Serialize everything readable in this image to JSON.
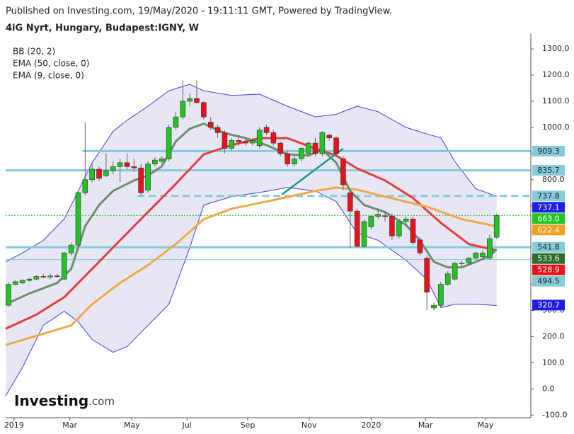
{
  "chart_data": {
    "type": "candlestick",
    "header": "Published on Investing.com, 19/May/2020 - 19:11:11 GMT, Powered by TradingView.",
    "title": "4iG Nyrt, Hungary, Budapest:IGNY, W",
    "legend": [
      "BB (20, 2)",
      "EMA (50, close, 0)",
      "EMA (9, close, 0)"
    ],
    "logo": [
      "Investing",
      ".com"
    ],
    "xlim": [
      -0.4,
      74.9
    ],
    "xticks": [
      {
        "value": 0.8,
        "label": "2019"
      },
      {
        "value": 8.8,
        "label": "Mar"
      },
      {
        "value": 17.7,
        "label": "May"
      },
      {
        "value": 25.6,
        "label": "Jul"
      },
      {
        "value": 34.3,
        "label": "Sep"
      },
      {
        "value": 43.1,
        "label": "Nov"
      },
      {
        "value": 52,
        "label": "2020"
      },
      {
        "value": 59.8,
        "label": "Mar"
      },
      {
        "value": 68.4,
        "label": "May"
      }
    ],
    "ylim": [
      -110,
      1330
    ],
    "yticks": [
      {
        "value": -100,
        "label": "-100.0"
      },
      {
        "value": 0,
        "label": "0.0"
      },
      {
        "value": 100,
        "label": "100.0"
      },
      {
        "value": 200,
        "label": "200.0"
      },
      {
        "value": 300,
        "label": "300.0"
      },
      {
        "value": 400,
        "label": "400.0"
      },
      {
        "value": 500,
        "label": "500.0"
      },
      {
        "value": 600,
        "label": "600.0"
      },
      {
        "value": 700,
        "label": "700.0"
      },
      {
        "value": 800,
        "label": "800.0"
      },
      {
        "value": 900,
        "label": "900.0"
      },
      {
        "value": 1000,
        "label": "1000.0"
      },
      {
        "value": 1100,
        "label": "1100.0"
      },
      {
        "value": 1200,
        "label": "1200.0"
      },
      {
        "value": 1300,
        "label": "1300.0"
      }
    ],
    "up_color": "#22c322",
    "down_color": "#e8121b",
    "ohlc": [
      [
        320,
        410,
        315,
        400
      ],
      [
        400,
        415,
        395,
        410
      ],
      [
        405,
        420,
        400,
        415
      ],
      [
        415,
        425,
        410,
        420
      ],
      [
        420,
        435,
        415,
        430
      ],
      [
        430,
        440,
        425,
        428
      ],
      [
        428,
        440,
        420,
        432
      ],
      [
        432,
        440,
        425,
        430
      ],
      [
        420,
        525,
        415,
        520
      ],
      [
        520,
        560,
        510,
        550
      ],
      [
        550,
        760,
        540,
        750
      ],
      [
        750,
        1020,
        740,
        800
      ],
      [
        800,
        860,
        790,
        840
      ],
      [
        840,
        850,
        795,
        805
      ],
      [
        815,
        900,
        810,
        835
      ],
      [
        835,
        870,
        820,
        850
      ],
      [
        850,
        880,
        790,
        865
      ],
      [
        865,
        900,
        840,
        850
      ],
      [
        850,
        880,
        830,
        845
      ],
      [
        845,
        860,
        740,
        750
      ],
      [
        760,
        870,
        750,
        860
      ],
      [
        860,
        885,
        850,
        875
      ],
      [
        870,
        890,
        860,
        880
      ],
      [
        880,
        1010,
        870,
        1000
      ],
      [
        1000,
        1060,
        990,
        1040
      ],
      [
        1040,
        1180,
        1030,
        1100
      ],
      [
        1100,
        1130,
        1080,
        1110
      ],
      [
        1110,
        1180,
        1090,
        1095
      ],
      [
        1095,
        1100,
        1030,
        1040
      ],
      [
        1020,
        1040,
        990,
        1000
      ],
      [
        1000,
        1010,
        960,
        980
      ],
      [
        980,
        990,
        900,
        920
      ],
      [
        920,
        960,
        910,
        950
      ],
      [
        950,
        970,
        930,
        945
      ],
      [
        945,
        960,
        930,
        940
      ],
      [
        940,
        960,
        930,
        950
      ],
      [
        930,
        1000,
        920,
        990
      ],
      [
        1000,
        1010,
        970,
        980
      ],
      [
        980,
        990,
        930,
        940
      ],
      [
        940,
        945,
        890,
        900
      ],
      [
        900,
        910,
        850,
        860
      ],
      [
        860,
        890,
        850,
        880
      ],
      [
        880,
        925,
        870,
        920
      ],
      [
        900,
        945,
        890,
        940
      ],
      [
        940,
        960,
        890,
        900
      ],
      [
        900,
        985,
        890,
        980
      ],
      [
        970,
        975,
        950,
        960
      ],
      [
        960,
        965,
        890,
        900
      ],
      [
        880,
        890,
        760,
        780
      ],
      [
        750,
        760,
        540,
        680
      ],
      [
        680,
        690,
        540,
        545
      ],
      [
        545,
        650,
        540,
        640
      ],
      [
        620,
        665,
        610,
        660
      ],
      [
        660,
        690,
        650,
        668
      ],
      [
        662,
        680,
        640,
        660
      ],
      [
        660,
        670,
        570,
        585
      ],
      [
        585,
        650,
        575,
        640
      ],
      [
        640,
        660,
        620,
        650
      ],
      [
        650,
        660,
        550,
        560
      ],
      [
        570,
        580,
        510,
        520
      ],
      [
        500,
        510,
        300,
        370
      ],
      [
        310,
        330,
        300,
        320
      ],
      [
        320,
        410,
        315,
        400
      ],
      [
        400,
        450,
        395,
        440
      ],
      [
        420,
        485,
        415,
        480
      ],
      [
        480,
        490,
        470,
        482
      ],
      [
        482,
        505,
        475,
        500
      ],
      [
        500,
        525,
        495,
        520
      ],
      [
        505,
        530,
        495,
        520
      ],
      [
        500,
        590,
        495,
        575
      ],
      [
        580,
        670,
        575,
        663
      ]
    ],
    "band": {
      "color": "#4040e0",
      "fill": "#e6e6f5",
      "x": [
        -0.4,
        2,
        5,
        8,
        10,
        12,
        15,
        17,
        20,
        23,
        26,
        28,
        32,
        36,
        40,
        44,
        47,
        50,
        53,
        57,
        60,
        62,
        64,
        67,
        70
      ],
      "upper": [
        486,
        520,
        568,
        650,
        757,
        865,
        985,
        1027,
        1081,
        1140,
        1165,
        1140,
        1122,
        1127,
        1081,
        1040,
        1050,
        1081,
        1060,
        1000,
        975,
        960,
        870,
        765,
        737
      ],
      "lower": [
        -27,
        81,
        243,
        297,
        257,
        189,
        140,
        162,
        243,
        324,
        540,
        703,
        735,
        751,
        770,
        757,
        716,
        595,
        568,
        492,
        419,
        311,
        324,
        324,
        319
      ]
    },
    "series": [
      {
        "color": "#e63c3c",
        "x": [
          -0.4,
          4,
          8,
          12,
          16,
          20,
          24,
          28,
          32,
          36,
          40,
          44,
          47,
          50,
          54,
          58,
          62,
          66,
          70
        ],
        "values": [
          230,
          284,
          351,
          459,
          568,
          676,
          784,
          897,
          932,
          959,
          959,
          919,
          892,
          843,
          797,
          730,
          635,
          554,
          529
        ]
      },
      {
        "color": "#f0a848",
        "x": [
          -0.4,
          5,
          9,
          12,
          16,
          20,
          24,
          28,
          32,
          38,
          44,
          47,
          50,
          54,
          60,
          65,
          70
        ],
        "values": [
          168,
          211,
          243,
          324,
          405,
          473,
          554,
          649,
          689,
          722,
          757,
          770,
          762,
          735,
          697,
          649,
          622
        ]
      },
      {
        "color": "#6e8f6e",
        "x": [
          -0.4,
          3,
          7,
          9,
          11,
          13,
          15,
          18,
          20,
          22,
          24,
          26,
          28,
          31,
          34,
          37,
          40,
          43,
          45,
          47,
          49,
          51,
          54,
          57,
          59,
          61,
          63,
          65,
          67,
          69,
          70
        ],
        "values": [
          324,
          365,
          405,
          459,
          622,
          703,
          757,
          797,
          816,
          851,
          946,
          995,
          1014,
          978,
          959,
          932,
          897,
          892,
          914,
          865,
          757,
          703,
          676,
          627,
          568,
          486,
          465,
          465,
          486,
          508,
          534
        ]
      }
    ],
    "trendline": {
      "color": "#169c8c",
      "x": [
        39.2,
        48
      ],
      "values": [
        743,
        919
      ]
    },
    "price_labels": [
      {
        "value": 909.3,
        "color": "#86cbd9",
        "text_color": "#222222",
        "line": "solid",
        "from": 10.6
      },
      {
        "value": 835.7,
        "color": "#86cbd9",
        "text_color": "#222222",
        "line": "solid",
        "from": -0.4
      },
      {
        "value": 737.8,
        "color": "#86cbd9",
        "text_color": "#222222",
        "line": "dashed",
        "from": 18.5
      },
      {
        "value": 737.1,
        "color": "#1e1ee6",
        "text_color": "#ffffff"
      },
      {
        "value": 663,
        "label": "663.0",
        "color": "#22c322",
        "text_color": "#ffffff",
        "line": "dotted",
        "from": -0.4
      },
      {
        "value": 622.4,
        "color": "#f0a020",
        "text_color": "#ffffff"
      },
      {
        "value": 541.8,
        "color": "#86cbd9",
        "text_color": "#222222",
        "line": "solid",
        "from": -0.4
      },
      {
        "value": 533.6,
        "color": "#2f6b2f",
        "text_color": "#ffffff"
      },
      {
        "value": 528.9,
        "color": "#e8121b",
        "text_color": "#ffffff"
      },
      {
        "value": 494.5,
        "color": "#86cbd9",
        "text_color": "#222222",
        "line": "thin",
        "from": -0.4
      },
      {
        "value": 320.7,
        "color": "#1e1ee6",
        "text_color": "#ffffff"
      }
    ]
  }
}
